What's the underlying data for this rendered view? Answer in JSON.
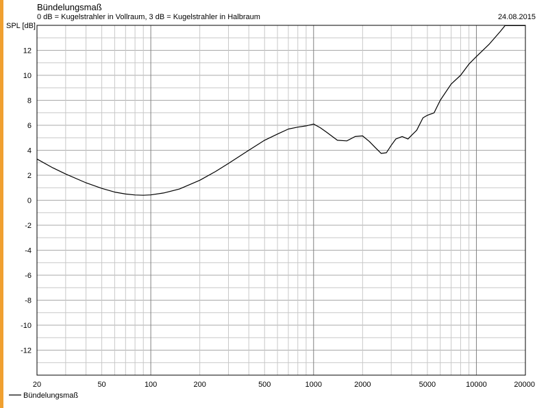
{
  "header": {
    "title": "Bündelungsmaß",
    "subtitle": "0 dB = Kugelstrahler in Vollraum, 3 dB = Kugelstrahler in Halbraum",
    "date": "24.08.2015"
  },
  "colors": {
    "curve": "#000000",
    "grid": "#c8c8c8",
    "grid_major": "#808080",
    "accent": "#f0a030"
  },
  "chart_data": {
    "type": "line",
    "title": "Bündelungsmaß",
    "subtitle": "0 dB = Kugelstrahler in Vollraum, 3 dB = Kugelstrahler in Halbraum",
    "ylabel": "SPL [dB]",
    "xlabel": "",
    "x_scale": "log",
    "xlim": [
      20,
      20000
    ],
    "ylim": [
      -14,
      14
    ],
    "x_ticks": [
      20,
      50,
      100,
      200,
      500,
      1000,
      2000,
      5000,
      10000,
      20000
    ],
    "y_ticks": [
      12,
      10,
      8,
      6,
      4,
      2,
      0,
      -2,
      -4,
      -6,
      -8,
      -10,
      -12
    ],
    "grid": true,
    "legend_position": "bottom-left",
    "series": [
      {
        "name": "Bündelungsmaß",
        "x": [
          20,
          25,
          30,
          40,
          50,
          60,
          70,
          80,
          90,
          100,
          120,
          150,
          200,
          250,
          300,
          400,
          500,
          600,
          700,
          800,
          900,
          1000,
          1100,
          1200,
          1400,
          1600,
          1800,
          2000,
          2200,
          2400,
          2600,
          2800,
          3000,
          3200,
          3500,
          3800,
          4000,
          4300,
          4700,
          5000,
          5500,
          6000,
          7000,
          8000,
          9000,
          10000,
          12000,
          14000,
          15000,
          20000
        ],
        "values": [
          3.3,
          2.6,
          2.1,
          1.4,
          0.95,
          0.65,
          0.5,
          0.42,
          0.4,
          0.43,
          0.58,
          0.9,
          1.6,
          2.3,
          2.95,
          4.0,
          4.8,
          5.3,
          5.7,
          5.85,
          5.95,
          6.1,
          5.8,
          5.45,
          4.8,
          4.75,
          5.1,
          5.15,
          4.7,
          4.2,
          3.75,
          3.8,
          4.4,
          4.9,
          5.1,
          4.9,
          5.2,
          5.6,
          6.6,
          6.8,
          7.0,
          8.0,
          9.3,
          10.0,
          10.9,
          11.5,
          12.5,
          13.5,
          14.0,
          14.0
        ]
      }
    ]
  }
}
